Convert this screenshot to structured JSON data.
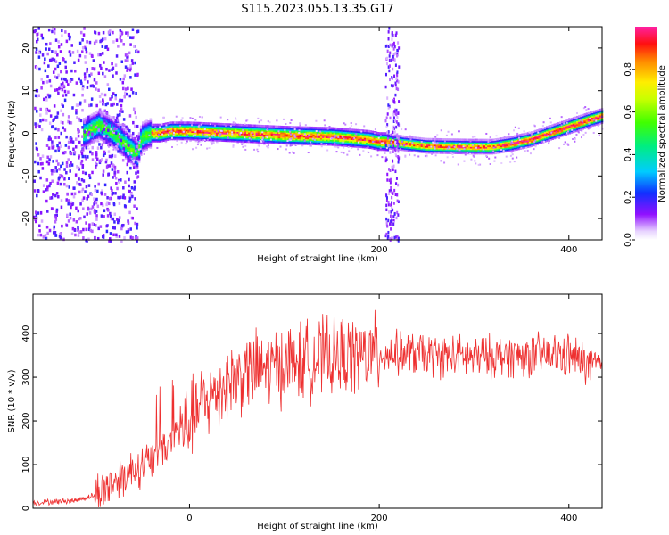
{
  "title": "S115.2023.055.13.35.G17",
  "chart_data": [
    {
      "type": "heatmap",
      "xlabel": "Height of straight line (km)",
      "ylabel": "Frequency (Hz)",
      "xlim": [
        -165,
        435
      ],
      "ylim": [
        -25,
        25
      ],
      "xticks": [
        0,
        200,
        400
      ],
      "yticks": [
        -20,
        -10,
        0,
        10,
        20
      ],
      "colorbar": {
        "label": "Normalized spectral amplitude",
        "range": [
          0.0,
          1.0
        ],
        "ticks": [
          0.0,
          0.2,
          0.4,
          0.6,
          0.8
        ],
        "tick_labels": [
          "0.0",
          "0.2",
          "0.4",
          "0.6",
          "0.8"
        ]
      },
      "ridge": {
        "x": [
          -110,
          -95,
          -80,
          -70,
          -60,
          -55,
          -50,
          -40,
          -30,
          -20,
          0,
          50,
          100,
          150,
          190,
          200,
          210,
          230,
          250,
          300,
          320,
          340,
          360,
          380,
          400,
          420,
          435
        ],
        "y": [
          0,
          2,
          0,
          -2,
          -4,
          -5,
          -1,
          0,
          0,
          0.5,
          0.5,
          0,
          -0.5,
          -0.8,
          -1.5,
          -2,
          -2,
          -2.5,
          -3,
          -3.2,
          -3.2,
          -2.5,
          -1.5,
          0,
          1.5,
          3,
          4
        ]
      }
    },
    {
      "type": "line",
      "xlabel": "Height of straight line (km)",
      "ylabel": "SNR (10 * v/v)",
      "xlim": [
        -165,
        435
      ],
      "ylim": [
        0,
        490
      ],
      "xticks": [
        0,
        200,
        400
      ],
      "yticks": [
        0,
        100,
        200,
        300,
        400
      ],
      "color": "#ee3030",
      "envelope": {
        "x": [
          -165,
          -120,
          -100,
          -80,
          -60,
          -40,
          -20,
          0,
          20,
          40,
          60,
          80,
          100,
          140,
          180,
          200,
          220,
          260,
          300,
          340,
          380,
          400,
          420,
          435
        ],
        "y": [
          12,
          18,
          30,
          60,
          90,
          110,
          150,
          200,
          250,
          290,
          310,
          320,
          330,
          345,
          350,
          355,
          355,
          350,
          345,
          350,
          350,
          350,
          330,
          320
        ]
      }
    }
  ]
}
